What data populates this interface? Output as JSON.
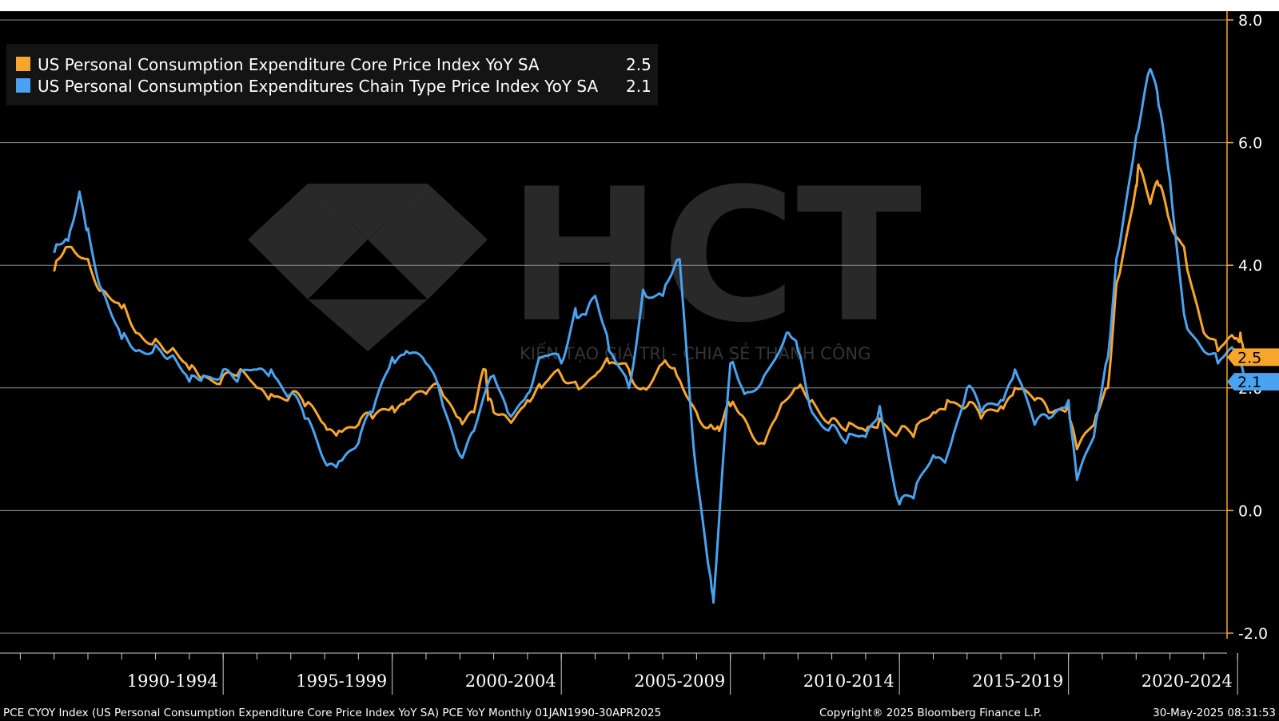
{
  "colors": {
    "core": "#f7a62c",
    "headline": "#4aa3f0",
    "grid": "#8c8c8c",
    "axis": "#f7a62c",
    "background": "#000000"
  },
  "watermark": {
    "logo_text": "HCT",
    "tagline": "KIẾN TẠO GIÁ TRỊ - CHIA SẺ THÀNH CÔNG"
  },
  "footer": {
    "description": "PCE CYOY Index (US Personal Consumption Expenditure Core Price Index YoY SA) PCE YoY  Monthly 01JAN1990-30APR2025",
    "copyright": "Copyright® 2025 Bloomberg Finance L.P.",
    "timestamp": "30-May-2025 08:31:53"
  },
  "chart_data": {
    "type": "line",
    "x_range": [
      "1990-01",
      "2025-04"
    ],
    "ylim": [
      -2.0,
      8.0
    ],
    "y_ticks": [
      {
        "value": 8.0,
        "label": "8.0"
      },
      {
        "value": 6.0,
        "label": "6.0"
      },
      {
        "value": 4.0,
        "label": "4.0"
      },
      {
        "value": 2.0,
        "label": "2.0"
      },
      {
        "value": 0.0,
        "label": "0.0"
      },
      {
        "value": -2.0,
        "label": "-2.0"
      }
    ],
    "x_periods": [
      "1990-1994",
      "1995-1999",
      "2000-2004",
      "2005-2009",
      "2010-2014",
      "2015-2019",
      "2020-2024"
    ],
    "grid": true,
    "legend_position": "top-left",
    "series": [
      {
        "key": "core",
        "name": "US Personal Consumption Expenditure Core Price Index YoY SA",
        "last_value": "2.5",
        "last_numeric": 2.5,
        "points": [
          [
            "1990-01",
            3.9
          ],
          [
            "1990-06",
            4.3
          ],
          [
            "1991-01",
            4.1
          ],
          [
            "1991-06",
            3.6
          ],
          [
            "1992-01",
            3.3
          ],
          [
            "1992-06",
            2.9
          ],
          [
            "1993-01",
            2.8
          ],
          [
            "1993-06",
            2.6
          ],
          [
            "1994-01",
            2.3
          ],
          [
            "1994-06",
            2.2
          ],
          [
            "1995-01",
            2.2
          ],
          [
            "1995-06",
            2.2
          ],
          [
            "1996-01",
            2.0
          ],
          [
            "1996-06",
            1.9
          ],
          [
            "1997-01",
            1.9
          ],
          [
            "1997-06",
            1.7
          ],
          [
            "1998-01",
            1.4
          ],
          [
            "1998-06",
            1.3
          ],
          [
            "1999-01",
            1.4
          ],
          [
            "1999-06",
            1.5
          ],
          [
            "2000-01",
            1.7
          ],
          [
            "2000-06",
            1.8
          ],
          [
            "2001-01",
            1.9
          ],
          [
            "2001-06",
            2.0
          ],
          [
            "2002-01",
            1.5
          ],
          [
            "2002-06",
            1.6
          ],
          [
            "2002-10",
            2.3
          ],
          [
            "2002-11",
            1.8
          ],
          [
            "2003-01",
            1.6
          ],
          [
            "2003-06",
            1.5
          ],
          [
            "2004-01",
            1.8
          ],
          [
            "2004-06",
            2.0
          ],
          [
            "2005-01",
            2.2
          ],
          [
            "2005-06",
            2.1
          ],
          [
            "2006-01",
            2.2
          ],
          [
            "2006-06",
            2.4
          ],
          [
            "2007-01",
            2.3
          ],
          [
            "2007-06",
            2.0
          ],
          [
            "2008-01",
            2.4
          ],
          [
            "2008-06",
            2.2
          ],
          [
            "2009-01",
            1.6
          ],
          [
            "2009-06",
            1.4
          ],
          [
            "2009-09",
            1.3
          ],
          [
            "2010-01",
            1.7
          ],
          [
            "2010-06",
            1.5
          ],
          [
            "2010-12",
            1.1
          ],
          [
            "2011-06",
            1.6
          ],
          [
            "2012-01",
            2.0
          ],
          [
            "2012-06",
            1.8
          ],
          [
            "2013-01",
            1.5
          ],
          [
            "2013-06",
            1.3
          ],
          [
            "2014-01",
            1.3
          ],
          [
            "2014-06",
            1.5
          ],
          [
            "2015-01",
            1.3
          ],
          [
            "2015-06",
            1.2
          ],
          [
            "2016-01",
            1.6
          ],
          [
            "2016-06",
            1.8
          ],
          [
            "2017-01",
            1.7
          ],
          [
            "2017-06",
            1.5
          ],
          [
            "2018-01",
            1.7
          ],
          [
            "2018-06",
            2.0
          ],
          [
            "2019-01",
            1.8
          ],
          [
            "2019-06",
            1.6
          ],
          [
            "2020-01",
            1.7
          ],
          [
            "2020-04",
            1.0
          ],
          [
            "2020-10",
            1.4
          ],
          [
            "2021-03",
            2.0
          ],
          [
            "2021-06",
            3.7
          ],
          [
            "2022-01",
            5.3
          ],
          [
            "2022-02",
            5.6
          ],
          [
            "2022-06",
            5.0
          ],
          [
            "2022-09",
            5.3
          ],
          [
            "2023-01",
            4.7
          ],
          [
            "2023-06",
            4.3
          ],
          [
            "2024-01",
            2.9
          ],
          [
            "2024-06",
            2.6
          ],
          [
            "2024-12",
            2.8
          ],
          [
            "2025-02",
            2.9
          ],
          [
            "2025-04",
            2.5
          ]
        ]
      },
      {
        "key": "headline",
        "name": "US Personal Consumption Expenditures Chain Type Price Index YoY SA",
        "last_value": "2.1",
        "last_numeric": 2.1,
        "points": [
          [
            "1990-01",
            4.2
          ],
          [
            "1990-06",
            4.4
          ],
          [
            "1990-10",
            5.2
          ],
          [
            "1991-01",
            4.6
          ],
          [
            "1991-06",
            3.6
          ],
          [
            "1992-01",
            2.8
          ],
          [
            "1992-06",
            2.6
          ],
          [
            "1993-01",
            2.7
          ],
          [
            "1993-06",
            2.5
          ],
          [
            "1994-01",
            2.1
          ],
          [
            "1994-06",
            2.2
          ],
          [
            "1995-01",
            2.3
          ],
          [
            "1995-06",
            2.1
          ],
          [
            "1996-01",
            2.3
          ],
          [
            "1996-06",
            2.3
          ],
          [
            "1997-01",
            1.9
          ],
          [
            "1997-06",
            1.5
          ],
          [
            "1998-01",
            0.8
          ],
          [
            "1998-06",
            0.8
          ],
          [
            "1999-01",
            1.1
          ],
          [
            "1999-06",
            1.6
          ],
          [
            "2000-01",
            2.5
          ],
          [
            "2000-06",
            2.6
          ],
          [
            "2001-01",
            2.4
          ],
          [
            "2001-06",
            1.9
          ],
          [
            "2002-01",
            0.9
          ],
          [
            "2002-06",
            1.3
          ],
          [
            "2003-01",
            2.2
          ],
          [
            "2003-06",
            1.6
          ],
          [
            "2004-01",
            1.9
          ],
          [
            "2004-06",
            2.5
          ],
          [
            "2005-01",
            2.4
          ],
          [
            "2005-06",
            3.3
          ],
          [
            "2005-09",
            3.2
          ],
          [
            "2006-01",
            3.5
          ],
          [
            "2006-06",
            2.6
          ],
          [
            "2007-01",
            2.0
          ],
          [
            "2007-06",
            3.6
          ],
          [
            "2008-01",
            3.5
          ],
          [
            "2008-07",
            4.1
          ],
          [
            "2008-12",
            1.0
          ],
          [
            "2009-06",
            -1.1
          ],
          [
            "2009-07",
            -1.5
          ],
          [
            "2010-01",
            2.4
          ],
          [
            "2010-06",
            1.9
          ],
          [
            "2011-01",
            2.2
          ],
          [
            "2011-09",
            2.9
          ],
          [
            "2012-01",
            2.6
          ],
          [
            "2012-06",
            1.6
          ],
          [
            "2013-01",
            1.4
          ],
          [
            "2013-06",
            1.1
          ],
          [
            "2014-01",
            1.2
          ],
          [
            "2014-06",
            1.7
          ],
          [
            "2015-01",
            0.1
          ],
          [
            "2015-06",
            0.2
          ],
          [
            "2016-01",
            0.9
          ],
          [
            "2016-06",
            0.9
          ],
          [
            "2017-01",
            2.0
          ],
          [
            "2017-06",
            1.6
          ],
          [
            "2018-01",
            1.8
          ],
          [
            "2018-06",
            2.3
          ],
          [
            "2019-01",
            1.4
          ],
          [
            "2019-06",
            1.5
          ],
          [
            "2020-01",
            1.8
          ],
          [
            "2020-04",
            0.5
          ],
          [
            "2020-10",
            1.2
          ],
          [
            "2021-03",
            2.5
          ],
          [
            "2021-06",
            4.1
          ],
          [
            "2022-01",
            6.1
          ],
          [
            "2022-06",
            7.2
          ],
          [
            "2022-09",
            6.6
          ],
          [
            "2023-01",
            5.4
          ],
          [
            "2023-06",
            3.2
          ],
          [
            "2024-01",
            2.6
          ],
          [
            "2024-06",
            2.4
          ],
          [
            "2024-12",
            2.6
          ],
          [
            "2025-02",
            2.5
          ],
          [
            "2025-04",
            2.1
          ]
        ]
      }
    ]
  }
}
